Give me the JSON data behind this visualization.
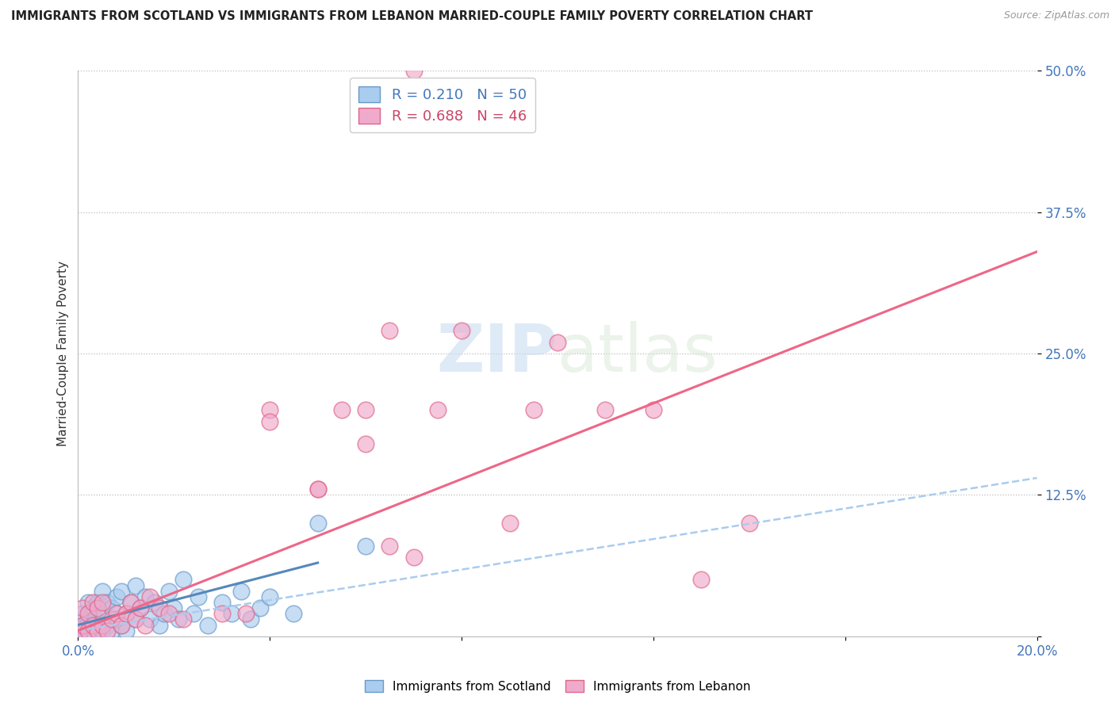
{
  "title": "IMMIGRANTS FROM SCOTLAND VS IMMIGRANTS FROM LEBANON MARRIED-COUPLE FAMILY POVERTY CORRELATION CHART",
  "source": "Source: ZipAtlas.com",
  "ylabel": "Married-Couple Family Poverty",
  "xlim": [
    0.0,
    0.2
  ],
  "ylim": [
    0.0,
    0.5
  ],
  "ytick_vals": [
    0.0,
    0.125,
    0.25,
    0.375,
    0.5
  ],
  "ytick_labels": [
    "",
    "12.5%",
    "25.0%",
    "37.5%",
    "50.0%"
  ],
  "xtick_vals": [
    0.0,
    0.04,
    0.08,
    0.12,
    0.16,
    0.2
  ],
  "xtick_labels": [
    "0.0%",
    "",
    "",
    "",
    "",
    "20.0%"
  ],
  "scotland_R": 0.21,
  "scotland_N": 50,
  "lebanon_R": 0.688,
  "lebanon_N": 46,
  "scotland_fill": "#aaccee",
  "scotland_edge": "#6699cc",
  "lebanon_fill": "#f0aacc",
  "lebanon_edge": "#dd6688",
  "scotland_line_color": "#5588bb",
  "lebanon_line_color": "#ee6688",
  "scotland_line_style": "-",
  "lebanon_line_style": "-",
  "ci_line_color": "#aaccee",
  "ci_line_style": "--",
  "watermark_color": "#ddeeff",
  "scotland_x": [
    0.0005,
    0.001,
    0.001,
    0.0015,
    0.002,
    0.002,
    0.0025,
    0.003,
    0.003,
    0.0035,
    0.004,
    0.004,
    0.005,
    0.005,
    0.005,
    0.006,
    0.006,
    0.007,
    0.007,
    0.008,
    0.008,
    0.009,
    0.009,
    0.01,
    0.01,
    0.011,
    0.012,
    0.012,
    0.013,
    0.014,
    0.015,
    0.016,
    0.017,
    0.018,
    0.019,
    0.02,
    0.021,
    0.022,
    0.024,
    0.025,
    0.027,
    0.03,
    0.032,
    0.034,
    0.036,
    0.038,
    0.04,
    0.045,
    0.05,
    0.06
  ],
  "scotland_y": [
    0.005,
    0.01,
    0.02,
    0.005,
    0.015,
    0.03,
    0.01,
    0.005,
    0.025,
    0.015,
    0.01,
    0.03,
    0.005,
    0.02,
    0.04,
    0.01,
    0.03,
    0.005,
    0.025,
    0.015,
    0.035,
    0.01,
    0.04,
    0.005,
    0.02,
    0.03,
    0.015,
    0.045,
    0.025,
    0.035,
    0.015,
    0.03,
    0.01,
    0.02,
    0.04,
    0.025,
    0.015,
    0.05,
    0.02,
    0.035,
    0.01,
    0.03,
    0.02,
    0.04,
    0.015,
    0.025,
    0.035,
    0.02,
    0.1,
    0.08
  ],
  "lebanon_x": [
    0.0005,
    0.001,
    0.001,
    0.002,
    0.002,
    0.003,
    0.003,
    0.004,
    0.004,
    0.005,
    0.005,
    0.006,
    0.007,
    0.008,
    0.009,
    0.01,
    0.011,
    0.012,
    0.013,
    0.014,
    0.015,
    0.017,
    0.019,
    0.022,
    0.03,
    0.035,
    0.04,
    0.05,
    0.06,
    0.065,
    0.07,
    0.075,
    0.08,
    0.09,
    0.095,
    0.1,
    0.11,
    0.12,
    0.13,
    0.14,
    0.04,
    0.05,
    0.055,
    0.06,
    0.065,
    0.07
  ],
  "lebanon_y": [
    0.005,
    0.01,
    0.025,
    0.005,
    0.02,
    0.01,
    0.03,
    0.005,
    0.025,
    0.01,
    0.03,
    0.005,
    0.015,
    0.02,
    0.01,
    0.02,
    0.03,
    0.015,
    0.025,
    0.01,
    0.035,
    0.025,
    0.02,
    0.015,
    0.02,
    0.02,
    0.2,
    0.13,
    0.2,
    0.27,
    0.5,
    0.2,
    0.27,
    0.1,
    0.2,
    0.26,
    0.2,
    0.2,
    0.05,
    0.1,
    0.19,
    0.13,
    0.2,
    0.17,
    0.08,
    0.07
  ],
  "scotland_trend_x": [
    0.0,
    0.05
  ],
  "scotland_trend_y": [
    0.01,
    0.065
  ],
  "lebanon_trend_x": [
    0.0,
    0.2
  ],
  "lebanon_trend_y": [
    0.005,
    0.34
  ],
  "ci_trend_x": [
    0.0,
    0.2
  ],
  "ci_trend_y": [
    0.005,
    0.14
  ]
}
